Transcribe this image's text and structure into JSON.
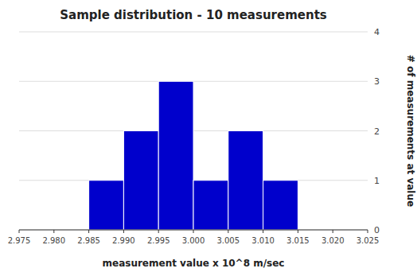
{
  "chart_data": {
    "type": "histogram",
    "title": "Sample distribution - 10 measurements",
    "xlabel": "measurement value x 10^8 m/sec",
    "ylabel": "# of measurements at value",
    "bins": [
      2.985,
      2.99,
      2.995,
      3.0,
      3.005,
      3.01,
      3.015
    ],
    "values": [
      1,
      2,
      3,
      1,
      2,
      1
    ],
    "color": "#0000cc",
    "xlim": [
      2.975,
      3.025
    ],
    "xticks": [
      2.975,
      {
        "value": 2.98,
        "label": "2.980"
      },
      2.985,
      {
        "value": 2.99,
        "label": "2.990"
      },
      2.995,
      {
        "value": 3.0,
        "label": "3.000"
      },
      3.005,
      {
        "value": 3.01,
        "label": "3.010"
      },
      3.015,
      {
        "value": 3.02,
        "label": "3.020"
      },
      3.025
    ],
    "ylim": [
      0,
      4
    ],
    "yticks": [
      0,
      1,
      2,
      3,
      4
    ],
    "grid": true
  }
}
